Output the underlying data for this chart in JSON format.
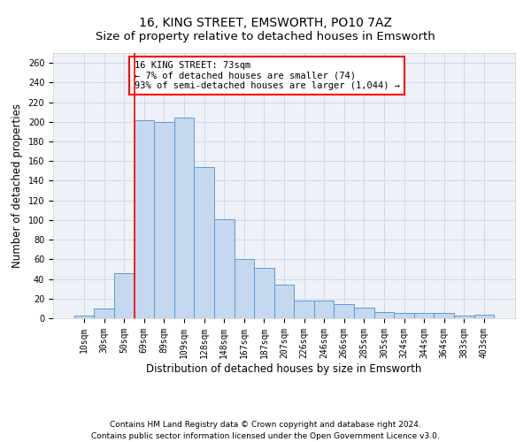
{
  "title": "16, KING STREET, EMSWORTH, PO10 7AZ",
  "subtitle": "Size of property relative to detached houses in Emsworth",
  "xlabel": "Distribution of detached houses by size in Emsworth",
  "ylabel": "Number of detached properties",
  "categories": [
    "10sqm",
    "30sqm",
    "50sqm",
    "69sqm",
    "89sqm",
    "109sqm",
    "128sqm",
    "148sqm",
    "167sqm",
    "187sqm",
    "207sqm",
    "226sqm",
    "246sqm",
    "266sqm",
    "285sqm",
    "305sqm",
    "324sqm",
    "344sqm",
    "364sqm",
    "383sqm",
    "403sqm"
  ],
  "values": [
    3,
    10,
    46,
    202,
    200,
    204,
    154,
    101,
    60,
    51,
    34,
    18,
    18,
    14,
    11,
    6,
    5,
    5,
    5,
    3,
    4
  ],
  "bar_color": "#c5d8f0",
  "bar_edge_color": "#5b9bd5",
  "vline_x_index": 3,
  "vline_color": "red",
  "annotation_text": "16 KING STREET: 73sqm\n← 7% of detached houses are smaller (74)\n93% of semi-detached houses are larger (1,044) →",
  "annotation_box_color": "white",
  "annotation_box_edge_color": "red",
  "ylim": [
    0,
    270
  ],
  "yticks": [
    0,
    20,
    40,
    60,
    80,
    100,
    120,
    140,
    160,
    180,
    200,
    220,
    240,
    260
  ],
  "grid_color": "#d0d8e8",
  "background_color": "#eef2f8",
  "footer_line1": "Contains HM Land Registry data © Crown copyright and database right 2024.",
  "footer_line2": "Contains public sector information licensed under the Open Government Licence v3.0.",
  "title_fontsize": 10,
  "axis_label_fontsize": 8.5,
  "tick_fontsize": 7,
  "footer_fontsize": 6.5,
  "annotation_fontsize": 7.5
}
